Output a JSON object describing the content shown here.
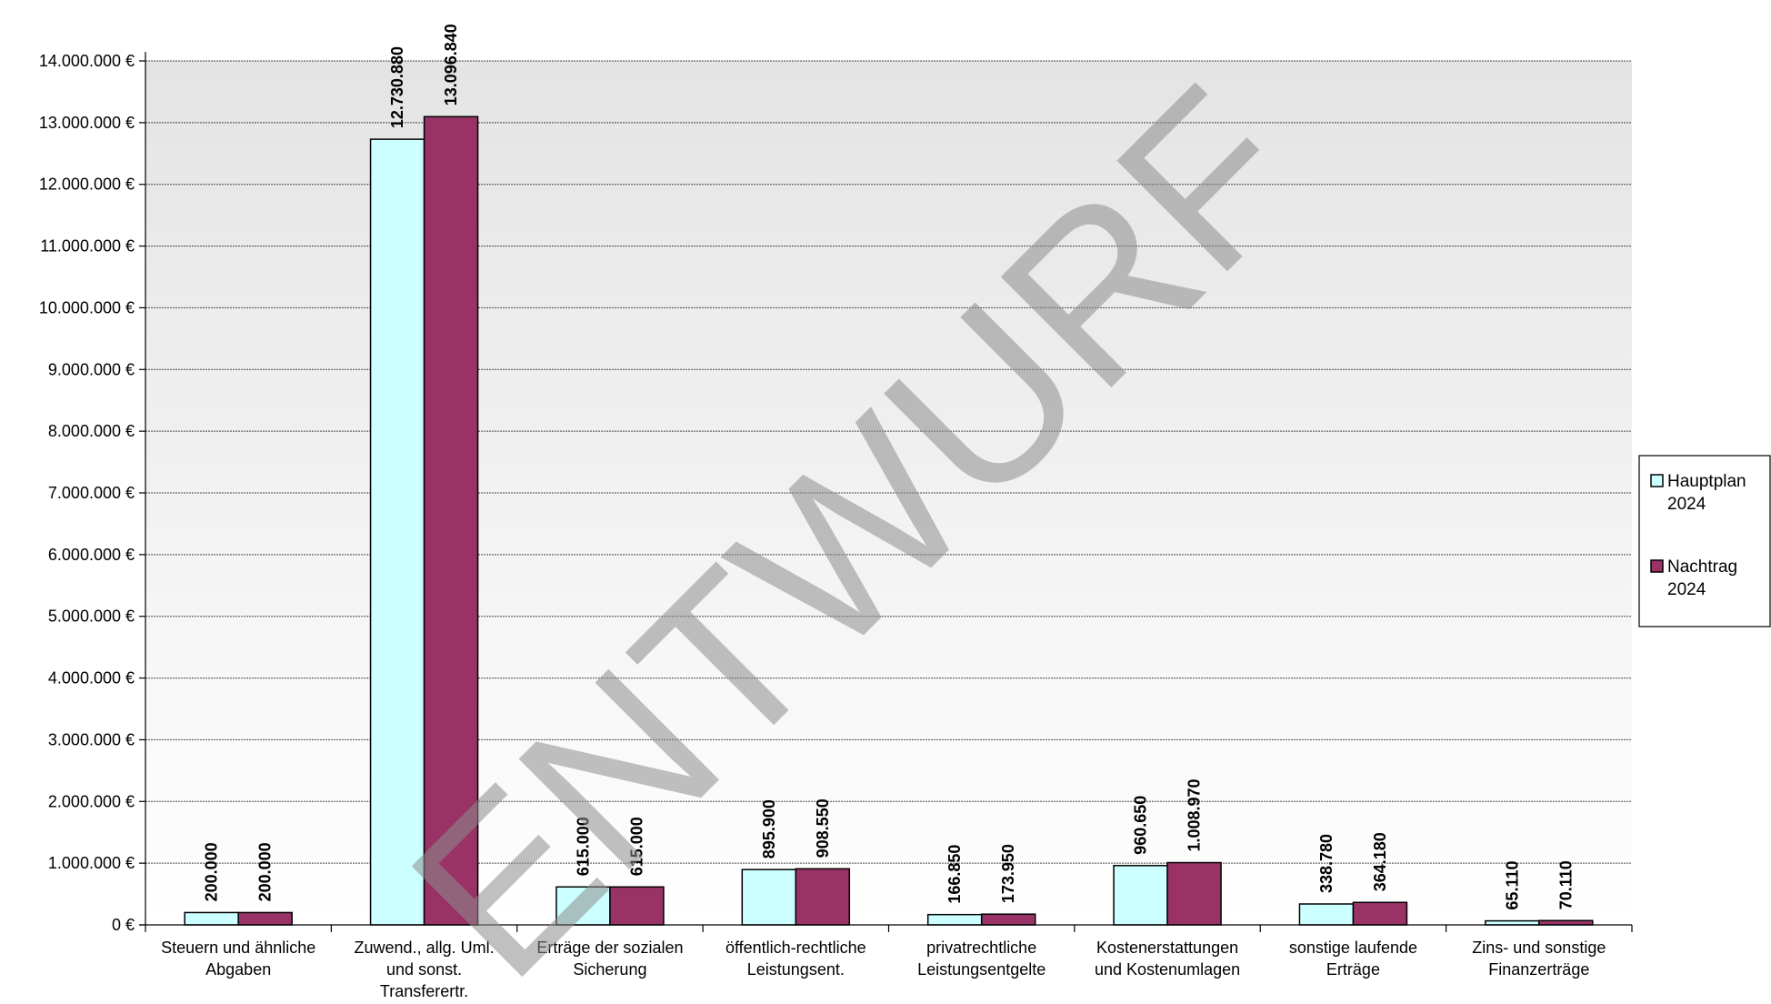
{
  "chart_data": {
    "type": "bar",
    "title": "",
    "categories": [
      [
        "Steuern und ähnliche",
        "Abgaben"
      ],
      [
        "Zuwend., allg. Uml.",
        "und sonst.",
        "Transferertr."
      ],
      [
        "Erträge der sozialen",
        "Sicherung"
      ],
      [
        "öffentlich-rechtliche",
        "Leistungsent."
      ],
      [
        "privatrechtliche",
        "Leistungsentgelte"
      ],
      [
        "Kostenerstattungen",
        "und Kostenumlagen"
      ],
      [
        "sonstige laufende",
        "Erträge"
      ],
      [
        "Zins- und sonstige",
        "Finanzerträge"
      ]
    ],
    "series": [
      {
        "name": [
          "Hauptplan",
          "2024"
        ],
        "color": "#ccffff",
        "values": [
          200000,
          12730880,
          615000,
          895900,
          166850,
          960650,
          338780,
          65110
        ],
        "labels": [
          "200.000",
          "12.730.880",
          "615.000",
          "895.900",
          "166.850",
          "960.650",
          "338.780",
          "65.110"
        ]
      },
      {
        "name": [
          "Nachtrag",
          "2024"
        ],
        "color": "#993366",
        "values": [
          200000,
          13096840,
          615000,
          908550,
          173950,
          1008970,
          364180,
          70110
        ],
        "labels": [
          "200.000",
          "13.096.840",
          "615.000",
          "908.550",
          "173.950",
          "1.008.970",
          "364.180",
          "70.110"
        ]
      }
    ],
    "ylim": [
      0,
      14000000
    ],
    "yticks": [
      "0 €",
      "1.000.000 €",
      "2.000.000 €",
      "3.000.000 €",
      "4.000.000 €",
      "5.000.000 €",
      "6.000.000 €",
      "7.000.000 €",
      "8.000.000 €",
      "9.000.000 €",
      "10.000.000 €",
      "11.000.000 €",
      "12.000.000 €",
      "13.000.000 €",
      "14.000.000 €"
    ],
    "ytick_step": 1000000,
    "grid": true,
    "legend_position": "right",
    "watermark": "ENTWURF",
    "xlabel": "",
    "ylabel": ""
  }
}
